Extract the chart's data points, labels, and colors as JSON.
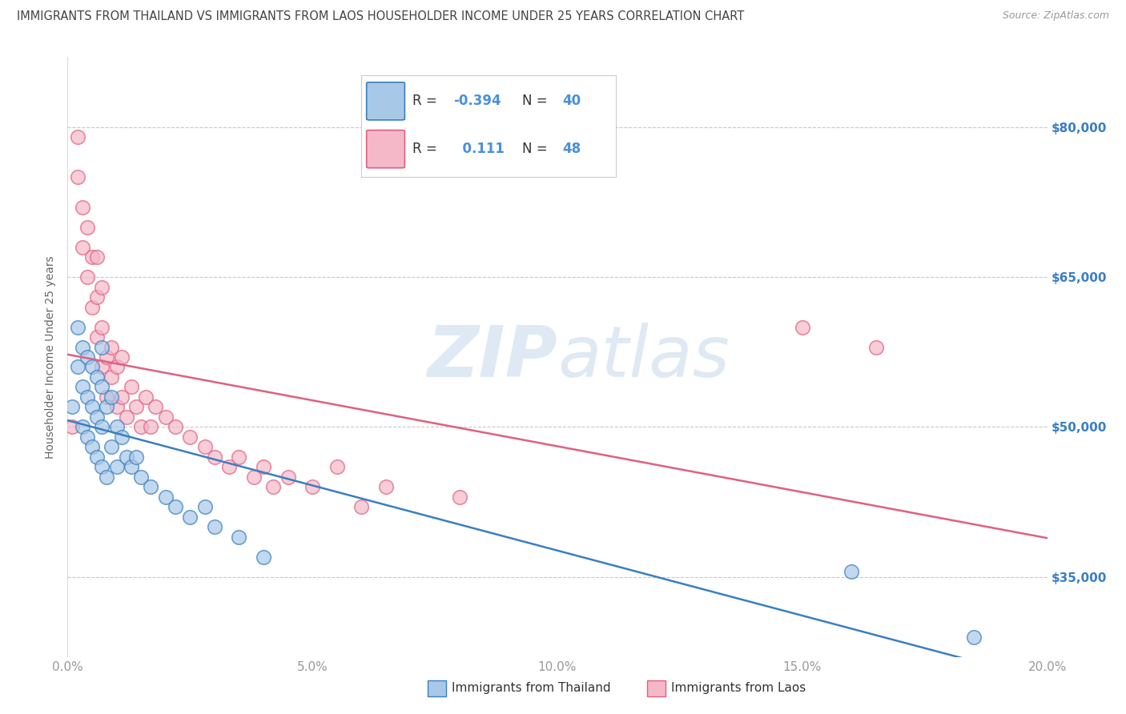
{
  "title": "IMMIGRANTS FROM THAILAND VS IMMIGRANTS FROM LAOS HOUSEHOLDER INCOME UNDER 25 YEARS CORRELATION CHART",
  "source": "Source: ZipAtlas.com",
  "legend_bottom_1": "Immigrants from Thailand",
  "legend_bottom_2": "Immigrants from Laos",
  "ylabel": "Householder Income Under 25 years",
  "xlim": [
    0.0,
    0.2
  ],
  "ylim": [
    27000,
    87000
  ],
  "xticks": [
    0.0,
    0.05,
    0.1,
    0.15,
    0.2
  ],
  "xticklabels": [
    "0.0%",
    "5.0%",
    "10.0%",
    "15.0%",
    "20.0%"
  ],
  "yticks": [
    35000,
    50000,
    65000,
    80000
  ],
  "yticklabels": [
    "$35,000",
    "$50,000",
    "$65,000",
    "$80,000"
  ],
  "legend_R1": "-0.394",
  "legend_N1": "40",
  "legend_R2": "0.111",
  "legend_N2": "48",
  "color_thailand": "#a8c8e8",
  "color_laos": "#f5b8c8",
  "line_color_thailand": "#3a7fc1",
  "line_color_laos": "#e06080",
  "watermark": "ZIPatlas",
  "background_color": "#ffffff",
  "grid_color": "#c8c8c8",
  "title_color": "#444444",
  "axis_label_color": "#666666",
  "tick_color": "#999999",
  "legend_value_color": "#4a90d9",
  "thailand_x": [
    0.001,
    0.002,
    0.002,
    0.003,
    0.003,
    0.003,
    0.004,
    0.004,
    0.004,
    0.005,
    0.005,
    0.005,
    0.006,
    0.006,
    0.006,
    0.007,
    0.007,
    0.007,
    0.007,
    0.008,
    0.008,
    0.009,
    0.009,
    0.01,
    0.01,
    0.011,
    0.012,
    0.013,
    0.014,
    0.015,
    0.017,
    0.02,
    0.022,
    0.025,
    0.028,
    0.03,
    0.035,
    0.04,
    0.16,
    0.185
  ],
  "thailand_y": [
    52000,
    56000,
    60000,
    50000,
    54000,
    58000,
    49000,
    53000,
    57000,
    48000,
    52000,
    56000,
    47000,
    51000,
    55000,
    46000,
    50000,
    54000,
    58000,
    45000,
    52000,
    48000,
    53000,
    46000,
    50000,
    49000,
    47000,
    46000,
    47000,
    45000,
    44000,
    43000,
    42000,
    41000,
    42000,
    40000,
    39000,
    37000,
    35500,
    29000
  ],
  "laos_x": [
    0.001,
    0.002,
    0.002,
    0.003,
    0.003,
    0.004,
    0.004,
    0.005,
    0.005,
    0.006,
    0.006,
    0.006,
    0.007,
    0.007,
    0.007,
    0.008,
    0.008,
    0.009,
    0.009,
    0.01,
    0.01,
    0.011,
    0.011,
    0.012,
    0.013,
    0.014,
    0.015,
    0.016,
    0.017,
    0.018,
    0.02,
    0.022,
    0.025,
    0.028,
    0.03,
    0.033,
    0.035,
    0.038,
    0.04,
    0.042,
    0.045,
    0.05,
    0.055,
    0.06,
    0.065,
    0.08,
    0.15,
    0.165
  ],
  "laos_y": [
    50000,
    75000,
    79000,
    72000,
    68000,
    65000,
    70000,
    62000,
    67000,
    59000,
    63000,
    67000,
    56000,
    60000,
    64000,
    53000,
    57000,
    55000,
    58000,
    52000,
    56000,
    53000,
    57000,
    51000,
    54000,
    52000,
    50000,
    53000,
    50000,
    52000,
    51000,
    50000,
    49000,
    48000,
    47000,
    46000,
    47000,
    45000,
    46000,
    44000,
    45000,
    44000,
    46000,
    42000,
    44000,
    43000,
    60000,
    58000
  ]
}
